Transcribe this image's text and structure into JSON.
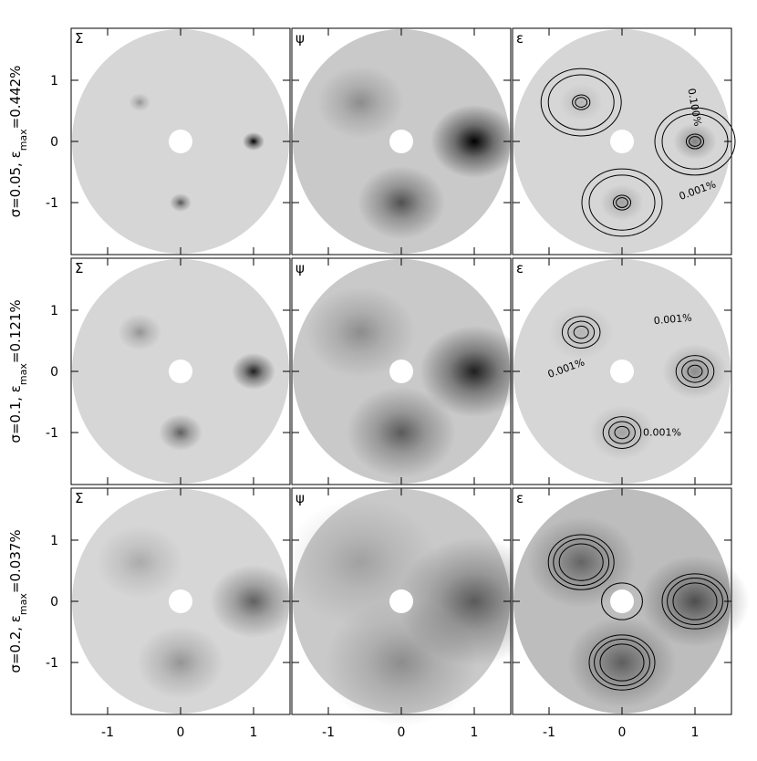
{
  "chart_data": {
    "type": "heatmap",
    "panel_titles": [
      "Σ",
      "ψ",
      "ε"
    ],
    "rows": [
      {
        "label_parts": [
          "σ=0.05,  ε",
          "max",
          "=0.442%"
        ],
        "sigma": 0.05,
        "contour_labels": [
          "0.100%",
          "0.001%"
        ]
      },
      {
        "label_parts": [
          "σ=0.1,  ε",
          "max",
          "=0.121%"
        ],
        "sigma": 0.1,
        "contour_labels": [
          "0.001%",
          "0.001%",
          "0.001%"
        ]
      },
      {
        "label_parts": [
          "σ=0.2,  ε",
          "max",
          "=0.037%"
        ],
        "sigma": 0.2,
        "contour_labels": []
      }
    ],
    "sources": {
      "x": [
        1,
        0,
        -0.56
      ],
      "y": [
        0,
        -1,
        0.64
      ]
    },
    "xlim": [
      -1.5,
      1.5
    ],
    "ylim": [
      -1.85,
      1.85
    ],
    "xticks": [
      -1,
      0,
      1
    ],
    "yticks": [
      -1,
      0,
      1
    ]
  }
}
